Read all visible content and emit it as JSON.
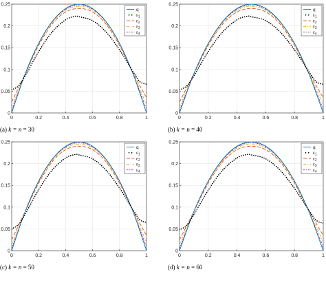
{
  "chart_data": [
    {
      "type": "line",
      "caption": "(a) k = n = 30",
      "caption_prefix": "(a) ",
      "caption_var": "k = n",
      "caption_value": " = 30",
      "xlim": [
        0,
        1
      ],
      "ylim": [
        0,
        0.25
      ],
      "xticks": [
        "0",
        "0.2",
        "0.4",
        "0.6",
        "0.8",
        "1"
      ],
      "yticks": [
        "0",
        "0.05",
        "0.1",
        "0.15",
        "0.2",
        "0.25"
      ],
      "legend": {
        "position": "top-right",
        "entries": [
          "q",
          "ε1",
          "ε2",
          "ε3",
          "ε4"
        ]
      },
      "series": [
        {
          "name": "q",
          "x": [
            0,
            0.1,
            0.2,
            0.3,
            0.4,
            0.5,
            0.6,
            0.7,
            0.8,
            0.9,
            1.0
          ],
          "y": [
            0,
            0.09,
            0.16,
            0.21,
            0.24,
            0.25,
            0.24,
            0.21,
            0.16,
            0.09,
            0
          ]
        },
        {
          "name": "ε1",
          "x": [
            0,
            0.05,
            0.1,
            0.2,
            0.3,
            0.4,
            0.47,
            0.5,
            0.6,
            0.7,
            0.8,
            0.9,
            0.95,
            1.0
          ],
          "y": [
            0.053,
            0.062,
            0.085,
            0.141,
            0.186,
            0.214,
            0.222,
            0.221,
            0.212,
            0.186,
            0.145,
            0.095,
            0.072,
            0.066
          ]
        },
        {
          "name": "ε2",
          "x": [
            0,
            0.1,
            0.2,
            0.3,
            0.4,
            0.5,
            0.6,
            0.7,
            0.8,
            0.9,
            1.0
          ],
          "y": [
            0.025,
            0.09,
            0.155,
            0.204,
            0.232,
            0.24,
            0.232,
            0.204,
            0.155,
            0.092,
            0.035
          ]
        },
        {
          "name": "ε3",
          "x": [
            0,
            0.1,
            0.2,
            0.3,
            0.4,
            0.5,
            0.6,
            0.7,
            0.8,
            0.9,
            1.0
          ],
          "y": [
            0.013,
            0.09,
            0.158,
            0.207,
            0.236,
            0.245,
            0.236,
            0.207,
            0.158,
            0.09,
            0.02
          ]
        },
        {
          "name": "ε4",
          "x": [
            0,
            0.1,
            0.2,
            0.3,
            0.4,
            0.5,
            0.6,
            0.7,
            0.8,
            0.9,
            1.0
          ],
          "y": [
            0.005,
            0.09,
            0.159,
            0.209,
            0.238,
            0.248,
            0.238,
            0.209,
            0.159,
            0.09,
            0.008
          ]
        }
      ]
    },
    {
      "type": "line",
      "caption": "(b) k = n = 40",
      "caption_prefix": "(b) ",
      "caption_var": "k = n",
      "caption_value": " = 40",
      "xlim": [
        0,
        1
      ],
      "ylim": [
        0,
        0.25
      ],
      "xticks": [
        "0",
        "0.2",
        "0.4",
        "0.6",
        "0.8",
        "1"
      ],
      "yticks": [
        "0",
        "0.05",
        "0.1",
        "0.15",
        "0.2",
        "0.25"
      ],
      "legend": {
        "position": "top-right",
        "entries": [
          "q",
          "ε1",
          "ε2",
          "ε3",
          "ε4"
        ]
      },
      "series": [
        {
          "name": "q",
          "x": [
            0,
            0.1,
            0.2,
            0.3,
            0.4,
            0.5,
            0.6,
            0.7,
            0.8,
            0.9,
            1.0
          ],
          "y": [
            0,
            0.09,
            0.16,
            0.21,
            0.24,
            0.25,
            0.24,
            0.21,
            0.16,
            0.09,
            0
          ]
        },
        {
          "name": "ε1",
          "x": [
            0,
            0.05,
            0.1,
            0.2,
            0.3,
            0.4,
            0.47,
            0.5,
            0.6,
            0.7,
            0.8,
            0.9,
            0.95,
            1.0
          ],
          "y": [
            0.053,
            0.062,
            0.085,
            0.141,
            0.186,
            0.214,
            0.222,
            0.221,
            0.212,
            0.186,
            0.145,
            0.095,
            0.072,
            0.066
          ]
        },
        {
          "name": "ε2",
          "x": [
            0,
            0.1,
            0.2,
            0.3,
            0.4,
            0.5,
            0.6,
            0.7,
            0.8,
            0.9,
            1.0
          ],
          "y": [
            0.025,
            0.09,
            0.155,
            0.204,
            0.232,
            0.24,
            0.232,
            0.204,
            0.155,
            0.092,
            0.035
          ]
        },
        {
          "name": "ε3",
          "x": [
            0,
            0.1,
            0.2,
            0.3,
            0.4,
            0.5,
            0.6,
            0.7,
            0.8,
            0.9,
            1.0
          ],
          "y": [
            0.013,
            0.09,
            0.158,
            0.207,
            0.236,
            0.245,
            0.236,
            0.207,
            0.158,
            0.09,
            0.02
          ]
        },
        {
          "name": "ε4",
          "x": [
            0,
            0.1,
            0.2,
            0.3,
            0.4,
            0.5,
            0.6,
            0.7,
            0.8,
            0.9,
            1.0
          ],
          "y": [
            0.005,
            0.09,
            0.159,
            0.209,
            0.238,
            0.248,
            0.238,
            0.209,
            0.159,
            0.09,
            0.008
          ]
        }
      ]
    },
    {
      "type": "line",
      "caption": "(c) k = n = 50",
      "caption_prefix": "(c) ",
      "caption_var": "k = n",
      "caption_value": " = 50",
      "xlim": [
        0,
        1
      ],
      "ylim": [
        0,
        0.25
      ],
      "xticks": [
        "0",
        "0.2",
        "0.4",
        "0.6",
        "0.8",
        "1"
      ],
      "yticks": [
        "0",
        "0.05",
        "0.1",
        "0.15",
        "0.2",
        "0.25"
      ],
      "legend": {
        "position": "top-right",
        "entries": [
          "q",
          "ε1",
          "ε2",
          "ε3",
          "ε4"
        ]
      },
      "series": [
        {
          "name": "q",
          "x": [
            0,
            0.1,
            0.2,
            0.3,
            0.4,
            0.5,
            0.6,
            0.7,
            0.8,
            0.9,
            1.0
          ],
          "y": [
            0,
            0.09,
            0.16,
            0.21,
            0.24,
            0.25,
            0.24,
            0.21,
            0.16,
            0.09,
            0
          ]
        },
        {
          "name": "ε1",
          "x": [
            0,
            0.05,
            0.1,
            0.2,
            0.3,
            0.4,
            0.47,
            0.5,
            0.6,
            0.7,
            0.8,
            0.9,
            0.95,
            1.0
          ],
          "y": [
            0.05,
            0.06,
            0.084,
            0.14,
            0.185,
            0.213,
            0.221,
            0.22,
            0.211,
            0.185,
            0.144,
            0.094,
            0.071,
            0.065
          ]
        },
        {
          "name": "ε2",
          "x": [
            0,
            0.1,
            0.2,
            0.3,
            0.4,
            0.5,
            0.6,
            0.7,
            0.8,
            0.9,
            1.0
          ],
          "y": [
            0.025,
            0.09,
            0.155,
            0.204,
            0.232,
            0.24,
            0.232,
            0.204,
            0.155,
            0.092,
            0.035
          ]
        },
        {
          "name": "ε3",
          "x": [
            0,
            0.1,
            0.2,
            0.3,
            0.4,
            0.5,
            0.6,
            0.7,
            0.8,
            0.9,
            1.0
          ],
          "y": [
            0.013,
            0.09,
            0.158,
            0.207,
            0.236,
            0.245,
            0.236,
            0.207,
            0.158,
            0.09,
            0.02
          ]
        },
        {
          "name": "ε4",
          "x": [
            0,
            0.1,
            0.2,
            0.3,
            0.4,
            0.5,
            0.6,
            0.7,
            0.8,
            0.9,
            1.0
          ],
          "y": [
            0.005,
            0.09,
            0.159,
            0.209,
            0.238,
            0.248,
            0.238,
            0.209,
            0.159,
            0.09,
            0.008
          ]
        }
      ]
    },
    {
      "type": "line",
      "caption": "(d) k = n = 60",
      "caption_prefix": "(d) ",
      "caption_var": "k = n",
      "caption_value": " = 60",
      "xlim": [
        0,
        1
      ],
      "ylim": [
        0,
        0.25
      ],
      "xticks": [
        "0",
        "0.2",
        "0.4",
        "0.6",
        "0.8",
        "1"
      ],
      "yticks": [
        "0",
        "0.05",
        "0.1",
        "0.15",
        "0.2",
        "0.25"
      ],
      "legend": {
        "position": "top-right",
        "entries": [
          "q",
          "ε1",
          "ε2",
          "ε3",
          "ε4"
        ]
      },
      "series": [
        {
          "name": "q",
          "x": [
            0,
            0.1,
            0.2,
            0.3,
            0.4,
            0.5,
            0.6,
            0.7,
            0.8,
            0.9,
            1.0
          ],
          "y": [
            0,
            0.09,
            0.16,
            0.21,
            0.24,
            0.25,
            0.24,
            0.21,
            0.16,
            0.09,
            0
          ]
        },
        {
          "name": "ε1",
          "x": [
            0,
            0.05,
            0.1,
            0.2,
            0.3,
            0.4,
            0.47,
            0.5,
            0.6,
            0.7,
            0.8,
            0.9,
            0.95,
            1.0
          ],
          "y": [
            0.048,
            0.058,
            0.083,
            0.139,
            0.185,
            0.213,
            0.221,
            0.22,
            0.211,
            0.185,
            0.143,
            0.093,
            0.07,
            0.063
          ]
        },
        {
          "name": "ε2",
          "x": [
            0,
            0.1,
            0.2,
            0.3,
            0.4,
            0.5,
            0.6,
            0.7,
            0.8,
            0.9,
            1.0
          ],
          "y": [
            0.025,
            0.09,
            0.155,
            0.204,
            0.232,
            0.24,
            0.232,
            0.204,
            0.155,
            0.092,
            0.035
          ]
        },
        {
          "name": "ε3",
          "x": [
            0,
            0.1,
            0.2,
            0.3,
            0.4,
            0.5,
            0.6,
            0.7,
            0.8,
            0.9,
            1.0
          ],
          "y": [
            0.013,
            0.09,
            0.158,
            0.207,
            0.236,
            0.245,
            0.236,
            0.207,
            0.158,
            0.09,
            0.02
          ]
        },
        {
          "name": "ε4",
          "x": [
            0,
            0.1,
            0.2,
            0.3,
            0.4,
            0.5,
            0.6,
            0.7,
            0.8,
            0.9,
            1.0
          ],
          "y": [
            0.005,
            0.09,
            0.159,
            0.209,
            0.238,
            0.248,
            0.238,
            0.209,
            0.159,
            0.09,
            0.008
          ]
        }
      ]
    }
  ],
  "series_styles": {
    "q": {
      "color": "#0072BD",
      "dash": "solid",
      "width": 0.9
    },
    "ε1": {
      "color": "#000000",
      "dash": "dots",
      "width": 1.6
    },
    "ε2": {
      "color": "#D95319",
      "dash": "dashed",
      "width": 0.9
    },
    "ε3": {
      "color": "#EDB120",
      "dash": "dashdot",
      "width": 0.9
    },
    "ε4": {
      "color": "#7E2F8E",
      "dash": "dashdot-fine",
      "width": 0.9
    }
  },
  "colors": {
    "axes": "#262626",
    "grid": "#e6e6e6"
  },
  "grid": true
}
